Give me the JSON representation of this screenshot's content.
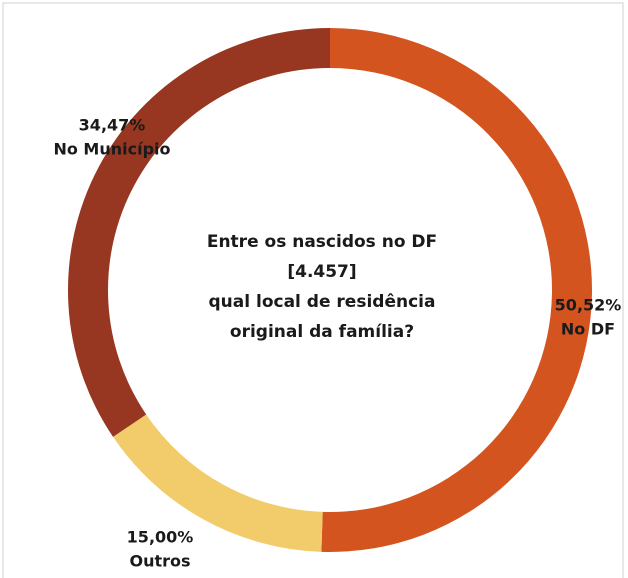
{
  "chart_data": {
    "type": "donut",
    "center_text": [
      "Entre os nascidos no DF",
      "[4.457]",
      "qual local de residência",
      "original da família?"
    ],
    "categories": [
      "No DF",
      "Outros",
      "No Município"
    ],
    "values": [
      50.52,
      15.0,
      34.47
    ],
    "value_labels": [
      "50,52%",
      "15,00%",
      "34,47%"
    ],
    "colors": [
      "#d4541f",
      "#f2cc6a",
      "#973621"
    ]
  }
}
